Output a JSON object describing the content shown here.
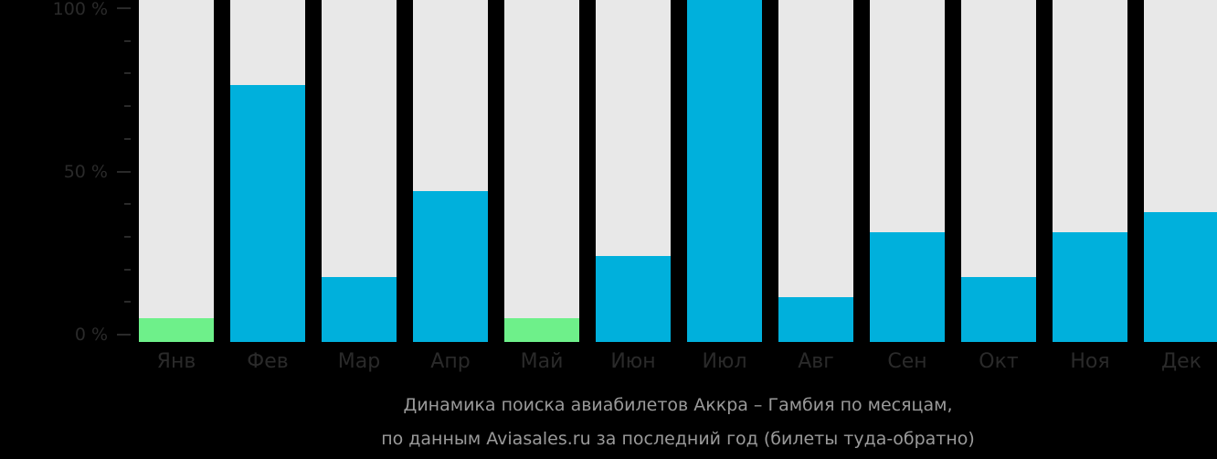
{
  "chart_data": {
    "type": "bar",
    "title": "Динамика поиска авиабилетов Аккра – Гамбия по месяцам,",
    "subtitle": "по данным Aviasales.ru за последний год (билеты туда-обратно)",
    "xlabel": "",
    "ylabel": "",
    "ylim": [
      0,
      100
    ],
    "y_ticks": [
      "100 %",
      "50 %",
      "0 %"
    ],
    "grid": false,
    "legend": null,
    "categories": [
      "Янв",
      "Фев",
      "Мар",
      "Апр",
      "Май",
      "Июн",
      "Июл",
      "Авг",
      "Сен",
      "Окт",
      "Ноя",
      "Дек"
    ],
    "values": [
      7,
      75,
      19,
      44,
      7,
      25,
      100,
      13,
      32,
      19,
      32,
      38
    ],
    "bar_colors": [
      "#6ef08a",
      "#00b0dc",
      "#00b0dc",
      "#00b0dc",
      "#6ef08a",
      "#00b0dc",
      "#00b0dc",
      "#00b0dc",
      "#00b0dc",
      "#00b0dc",
      "#00b0dc",
      "#00b0dc"
    ],
    "background_bar_color": "#e8e8e8",
    "colors": {
      "high": "#00b0dc",
      "low": "#6ef08a",
      "background": "#000000"
    }
  },
  "axis": {
    "y_labels": [
      "100 %",
      "50 %",
      "0 %"
    ]
  },
  "caption": {
    "line1": "Динамика поиска авиабилетов Аккра – Гамбия по месяцам,",
    "line2": "по данным Aviasales.ru за последний год (билеты туда-обратно)"
  }
}
